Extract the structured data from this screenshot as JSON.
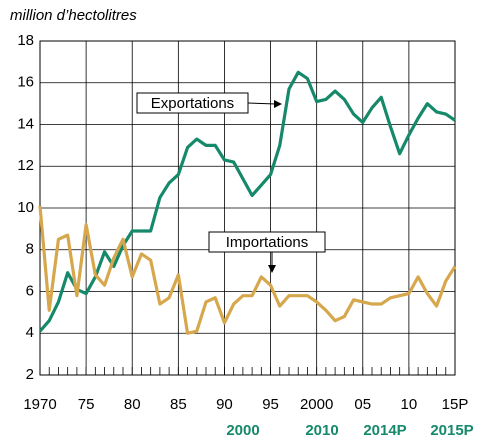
{
  "chart_data": {
    "type": "line",
    "y_axis_label": "million d’hectolitres",
    "x": [
      1970,
      1971,
      1972,
      1973,
      1974,
      1975,
      1976,
      1977,
      1978,
      1979,
      1980,
      1981,
      1982,
      1983,
      1984,
      1985,
      1986,
      1987,
      1988,
      1989,
      1990,
      1991,
      1992,
      1993,
      1994,
      1995,
      1996,
      1997,
      1998,
      1999,
      2000,
      2001,
      2002,
      2003,
      2004,
      2005,
      2006,
      2007,
      2008,
      2009,
      2010,
      2011,
      2012,
      2013,
      2014,
      2015
    ],
    "series": [
      {
        "name": "Exportations",
        "color": "#16896a",
        "values": [
          4.1,
          4.6,
          5.5,
          6.9,
          6.1,
          5.9,
          6.7,
          7.9,
          7.2,
          8.2,
          8.9,
          8.9,
          8.9,
          10.5,
          11.2,
          11.6,
          12.9,
          13.3,
          13.0,
          13.0,
          12.3,
          12.2,
          11.4,
          10.6,
          11.1,
          11.6,
          13.0,
          15.7,
          16.5,
          16.2,
          15.1,
          15.2,
          15.6,
          15.2,
          14.5,
          14.1,
          14.8,
          15.3,
          13.9,
          12.6,
          13.5,
          14.3,
          15.0,
          14.6,
          14.5,
          14.2
        ]
      },
      {
        "name": "Importations",
        "color": "#d6a74c",
        "values": [
          10.1,
          5.1,
          8.5,
          8.7,
          5.8,
          9.2,
          6.8,
          6.3,
          7.6,
          8.5,
          6.7,
          7.8,
          7.5,
          5.4,
          5.7,
          6.8,
          4.0,
          4.1,
          5.5,
          5.7,
          4.5,
          5.4,
          5.8,
          5.8,
          6.7,
          6.3,
          5.3,
          5.8,
          5.8,
          5.8,
          5.5,
          5.1,
          4.6,
          4.8,
          5.6,
          5.5,
          5.4,
          5.4,
          5.7,
          5.8,
          5.9,
          6.7,
          5.9,
          5.3,
          6.5,
          7.2
        ]
      }
    ],
    "xlim": [
      1970,
      2015
    ],
    "xticks": [
      1970,
      {
        "value": 1975,
        "label": "75"
      },
      {
        "value": 1980,
        "label": "80"
      },
      {
        "value": 1985,
        "label": "85"
      },
      {
        "value": 1990,
        "label": "90"
      },
      {
        "value": 1995,
        "label": "95"
      },
      2000,
      {
        "value": 2005,
        "label": "05"
      },
      {
        "value": 2010,
        "label": "10"
      },
      {
        "value": 2015,
        "label": "15P"
      }
    ],
    "ylim": [
      2,
      18
    ],
    "yticks": [
      2,
      4,
      6,
      8,
      10,
      12,
      14,
      16,
      18
    ],
    "grid": true,
    "footer_labels": [
      "2000",
      "2010",
      "2014P",
      "2015P"
    ],
    "footer_color": "#16896a"
  }
}
